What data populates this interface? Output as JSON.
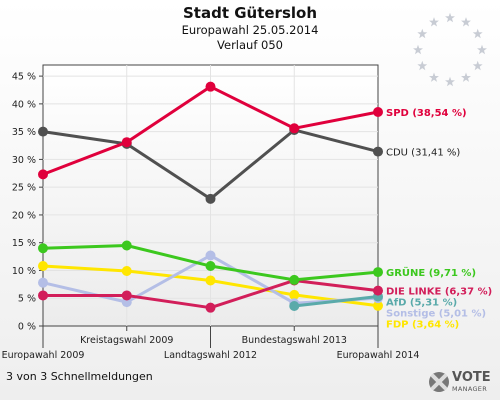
{
  "header": {
    "title": "Stadt Gütersloh",
    "subtitle": "Europawahl 25.05.2014",
    "subtitle2": "Verlauf 050"
  },
  "footer": {
    "text": "3 von 3 Schnellmeldungen"
  },
  "logo": {
    "line1": "VOTE",
    "line2": "MANAGER"
  },
  "chart_data": {
    "type": "line",
    "x": [
      "Europawahl 2009",
      "Kreistagswahl 2009",
      "Landtagswahl 2012",
      "Bundestagswahl 2013",
      "Europawahl 2014"
    ],
    "ylim": [
      0,
      47
    ],
    "yticks": [
      0,
      5,
      10,
      15,
      20,
      25,
      30,
      35,
      40,
      45
    ],
    "ytick_labels": [
      "0 %",
      "5 %",
      "10 %",
      "15 %",
      "20 %",
      "25 %",
      "30 %",
      "35 %",
      "40 %",
      "45 %"
    ],
    "grid": true,
    "series": [
      {
        "name": "SPD",
        "label": "SPD (38,54 %)",
        "color": "#e0003c",
        "values": [
          27.3,
          33.1,
          43.1,
          35.6,
          38.54
        ]
      },
      {
        "name": "CDU",
        "label": "CDU (31,41 %)",
        "color": "#505050",
        "values": [
          35.0,
          32.8,
          22.9,
          35.3,
          31.41
        ]
      },
      {
        "name": "GRÜNE",
        "label": "GRÜNE (9,71 %)",
        "color": "#3cc81e",
        "values": [
          14.0,
          14.5,
          10.8,
          8.3,
          9.71
        ]
      },
      {
        "name": "DIE LINKE",
        "label": "DIE LINKE (6,37 %)",
        "color": "#d21e5a",
        "values": [
          5.5,
          5.5,
          3.3,
          8.2,
          6.37
        ]
      },
      {
        "name": "AfD",
        "label": "AfD (5,31 %)",
        "color": "#5aaaaa",
        "values": [
          null,
          null,
          null,
          3.6,
          5.31
        ]
      },
      {
        "name": "Sonstige",
        "label": "Sonstige (5,01 %)",
        "color": "#b4bee6",
        "values": [
          7.8,
          4.3,
          12.7,
          4.1,
          5.01
        ]
      },
      {
        "name": "FDP",
        "label": "FDP (3,64 %)",
        "color": "#ffe600",
        "values": [
          10.8,
          9.9,
          8.2,
          5.6,
          3.64
        ]
      }
    ]
  }
}
